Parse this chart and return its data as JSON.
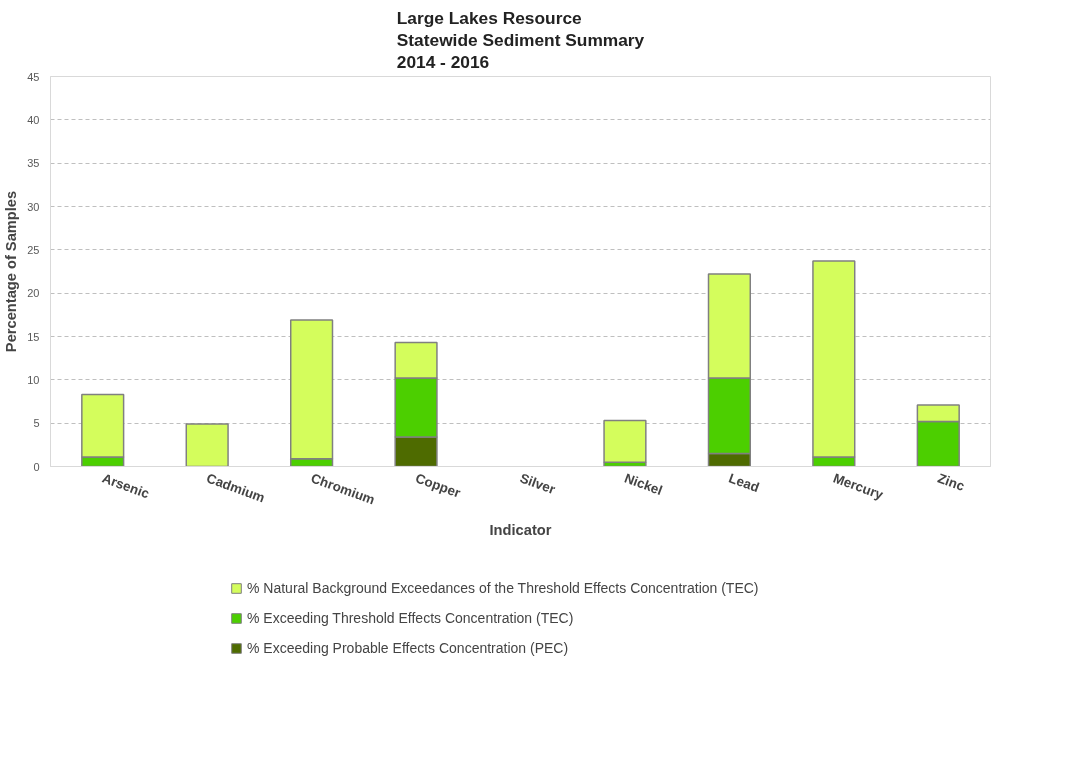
{
  "chart_data": {
    "type": "bar",
    "title": "Large Lakes Resource\nStatewide Sediment Summary\n2014 - 2016",
    "xlabel": "Indicator",
    "ylabel": "Percentage of Samples",
    "categories": [
      "Arsenic",
      "Cadmium",
      "Chromium",
      "Copper",
      "Silver",
      "Nickel",
      "Lead",
      "Mercury",
      "Zinc"
    ],
    "stacked": true,
    "series": [
      {
        "name": "% Exceeding Probable Effects Concentration (PEC)",
        "color": "#4e6b00",
        "values": [
          null,
          null,
          null,
          3.4,
          null,
          null,
          1.5,
          null,
          null
        ]
      },
      {
        "name": "% Exceeding Threshold Effects Concentration (TEC)",
        "color": "#4ccf00",
        "values": [
          1.1,
          null,
          0.9,
          6.8,
          null,
          0.5,
          8.7,
          1.1,
          5.2
        ]
      },
      {
        "name": "% Natural Background Exceedances of the Threshold Effects Concentration (TEC)",
        "color": "#d4fd5c",
        "values": [
          7.2,
          4.9,
          16.0,
          4.1,
          null,
          4.8,
          12.0,
          22.6,
          1.9
        ]
      }
    ],
    "ylim": [
      0,
      45
    ],
    "yticks": [
      0,
      5,
      10,
      15,
      20,
      25,
      30,
      35,
      40,
      45
    ],
    "grid": "y",
    "legend": "bottom"
  }
}
